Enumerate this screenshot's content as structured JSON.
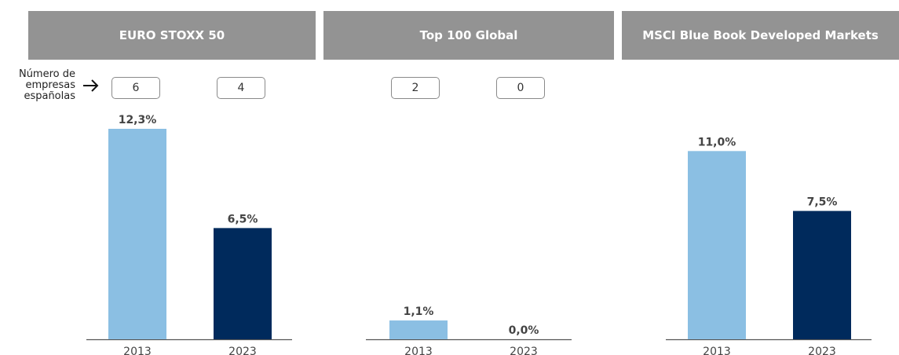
{
  "side_label": [
    "Número de",
    "empresas",
    "españolas"
  ],
  "colors": {
    "header": "#939393",
    "bar_2013": "#8bbfe3",
    "bar_2023": "#002a5c",
    "axis": "#555555"
  },
  "chart_data": [
    {
      "type": "bar",
      "title": "EURO STOXX 50",
      "categories": [
        "2013",
        "2023"
      ],
      "values": [
        12.3,
        6.5
      ],
      "value_labels": [
        "12,3%",
        "6,5%"
      ],
      "counts": [
        "6",
        "4"
      ],
      "ylim": [
        0,
        14
      ]
    },
    {
      "type": "bar",
      "title": "Top 100 Global",
      "categories": [
        "2013",
        "2023"
      ],
      "values": [
        1.1,
        0.0
      ],
      "value_labels": [
        "1,1%",
        "0,0%"
      ],
      "counts": [
        "2",
        "0"
      ],
      "ylim": [
        0,
        14
      ]
    },
    {
      "type": "bar",
      "title": "MSCI Blue Book Developed Markets",
      "categories": [
        "2013",
        "2023"
      ],
      "values": [
        11.0,
        7.5
      ],
      "value_labels": [
        "11,0%",
        "7,5%"
      ],
      "counts": [],
      "ylim": [
        0,
        14
      ]
    }
  ]
}
